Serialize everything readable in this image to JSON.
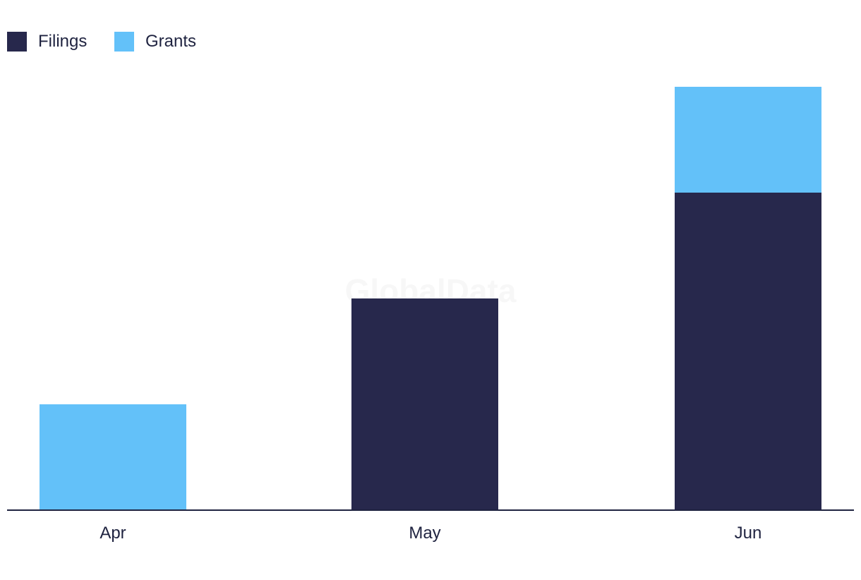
{
  "chart_data": {
    "type": "bar",
    "stacked": true,
    "categories": [
      "Apr",
      "May",
      "Jun"
    ],
    "series": [
      {
        "name": "Filings",
        "values": [
          0,
          2,
          3
        ],
        "color": "#27284c"
      },
      {
        "name": "Grants",
        "values": [
          1,
          0,
          1
        ],
        "color": "#63c1f9"
      }
    ],
    "title": "",
    "xlabel": "",
    "ylabel": "",
    "ylim": [
      0,
      4
    ],
    "grid": false,
    "legend_position": "top-left"
  },
  "watermark": "GlobalData"
}
